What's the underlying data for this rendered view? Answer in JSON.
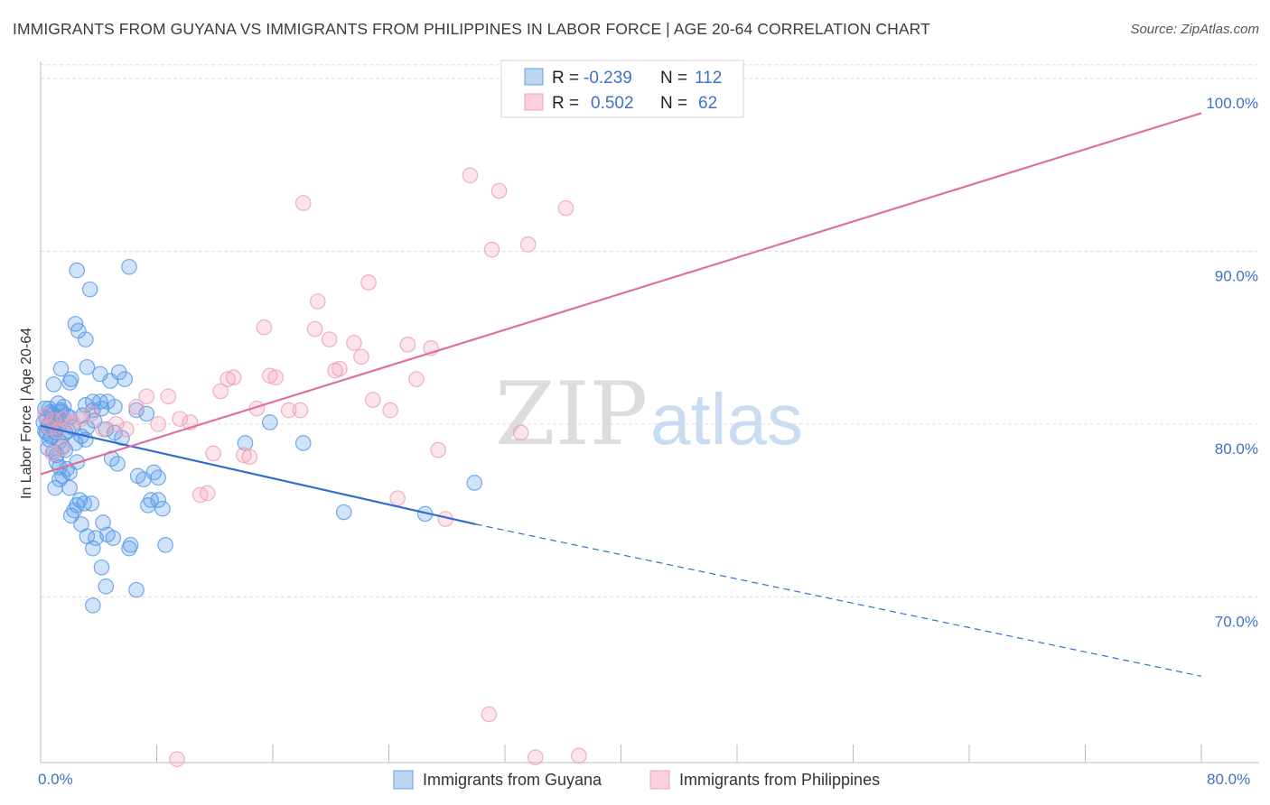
{
  "chart_data": {
    "type": "scatter",
    "title": "IMMIGRANTS FROM GUYANA VS IMMIGRANTS FROM PHILIPPINES IN LABOR FORCE | AGE 20-64 CORRELATION CHART",
    "source": "Source: ZipAtlas.com",
    "ylabel": "In Labor Force | Age 20-64",
    "xlim": [
      0,
      80
    ],
    "ylim": [
      60.4,
      101
    ],
    "x_tick_labels": [
      "0.0%",
      "80.0%"
    ],
    "y_ticks": [
      {
        "value": 70,
        "label": "70.0%"
      },
      {
        "value": 80,
        "label": "80.0%"
      },
      {
        "value": 90,
        "label": "90.0%"
      },
      {
        "value": 100,
        "label": "100.0%"
      }
    ],
    "watermark": {
      "zip": "ZIP",
      "atlas": "atlas"
    },
    "colors": {
      "guyana": "#5b9be8",
      "guyana_line": "#2f6fce",
      "philippines": "#f0a0b8",
      "philippines_line": "#e0709a",
      "tick": "#3d72c9"
    },
    "legend": [
      {
        "r_label": "R =",
        "r_value": "-0.239",
        "n_label": "N =",
        "n_value": "112"
      },
      {
        "r_label": "R =",
        "r_value": "0.502",
        "n_label": "N =",
        "n_value": "62"
      }
    ],
    "series": [
      {
        "name": "Immigrants from Guyana",
        "trend": {
          "x0": 0,
          "y0": 79.9,
          "x1": 30,
          "y1": 74.2,
          "x_dash_end": 80,
          "y_dash_end": 65.4
        },
        "points": [
          [
            0.2,
            80.1
          ],
          [
            0.3,
            79.6
          ],
          [
            0.4,
            80.3
          ],
          [
            0.5,
            79.8
          ],
          [
            0.6,
            80.0
          ],
          [
            0.7,
            79.3
          ],
          [
            0.8,
            80.5
          ],
          [
            0.9,
            79.9
          ],
          [
            1.0,
            80.2
          ],
          [
            1.1,
            79.7
          ],
          [
            0.3,
            80.9
          ],
          [
            0.5,
            78.6
          ],
          [
            0.6,
            79.1
          ],
          [
            0.8,
            80.6
          ],
          [
            1.0,
            79.5
          ],
          [
            1.2,
            80.4
          ],
          [
            1.3,
            79.0
          ],
          [
            1.4,
            80.8
          ],
          [
            1.5,
            78.7
          ],
          [
            1.6,
            80.3
          ],
          [
            0.9,
            82.3
          ],
          [
            1.2,
            81.2
          ],
          [
            1.4,
            80.7
          ],
          [
            1.6,
            81.0
          ],
          [
            1.8,
            80.5
          ],
          [
            2.0,
            80.4
          ],
          [
            2.2,
            79.8
          ],
          [
            1.1,
            78.2
          ],
          [
            1.3,
            77.5
          ],
          [
            1.5,
            77.0
          ],
          [
            1.0,
            76.3
          ],
          [
            1.3,
            76.8
          ],
          [
            1.8,
            77.4
          ],
          [
            2.0,
            77.2
          ],
          [
            2.5,
            77.8
          ],
          [
            2.0,
            76.3
          ],
          [
            2.3,
            75.0
          ],
          [
            2.1,
            74.7
          ],
          [
            2.5,
            75.3
          ],
          [
            3.0,
            75.4
          ],
          [
            2.7,
            75.6
          ],
          [
            3.5,
            75.4
          ],
          [
            2.8,
            74.2
          ],
          [
            3.2,
            73.5
          ],
          [
            3.8,
            73.4
          ],
          [
            3.6,
            72.8
          ],
          [
            4.3,
            74.3
          ],
          [
            4.6,
            73.6
          ],
          [
            5.0,
            73.4
          ],
          [
            6.1,
            72.8
          ],
          [
            6.2,
            73.0
          ],
          [
            4.2,
            71.7
          ],
          [
            4.5,
            70.6
          ],
          [
            3.6,
            69.5
          ],
          [
            6.6,
            70.4
          ],
          [
            1.4,
            83.2
          ],
          [
            2.1,
            82.6
          ],
          [
            2.0,
            82.4
          ],
          [
            3.2,
            83.3
          ],
          [
            4.1,
            82.9
          ],
          [
            4.8,
            82.5
          ],
          [
            5.4,
            83.0
          ],
          [
            5.8,
            82.6
          ],
          [
            3.1,
            81.1
          ],
          [
            3.6,
            81.3
          ],
          [
            4.1,
            81.3
          ],
          [
            4.6,
            81.3
          ],
          [
            5.1,
            81.0
          ],
          [
            2.9,
            80.5
          ],
          [
            3.6,
            80.8
          ],
          [
            4.2,
            80.9
          ],
          [
            3.7,
            80.2
          ],
          [
            3.2,
            79.8
          ],
          [
            4.5,
            79.7
          ],
          [
            5.1,
            79.5
          ],
          [
            5.6,
            79.2
          ],
          [
            6.6,
            80.8
          ],
          [
            7.3,
            80.6
          ],
          [
            3.1,
            79.1
          ],
          [
            4.9,
            78.0
          ],
          [
            5.3,
            77.7
          ],
          [
            6.7,
            77.0
          ],
          [
            7.1,
            76.8
          ],
          [
            7.8,
            77.2
          ],
          [
            8.1,
            76.9
          ],
          [
            7.4,
            75.3
          ],
          [
            7.6,
            75.6
          ],
          [
            8.1,
            75.6
          ],
          [
            8.4,
            75.1
          ],
          [
            8.6,
            73.0
          ],
          [
            2.4,
            85.8
          ],
          [
            2.6,
            85.4
          ],
          [
            3.1,
            84.9
          ],
          [
            3.4,
            87.8
          ],
          [
            2.5,
            88.9
          ],
          [
            6.1,
            89.1
          ],
          [
            14.1,
            78.9
          ],
          [
            15.8,
            80.1
          ],
          [
            18.1,
            78.9
          ],
          [
            20.9,
            74.9
          ],
          [
            26.5,
            74.8
          ],
          [
            29.9,
            76.6
          ],
          [
            0.4,
            79.5
          ],
          [
            0.7,
            80.7
          ],
          [
            0.9,
            78.4
          ],
          [
            1.7,
            79.5
          ],
          [
            2.4,
            78.9
          ],
          [
            0.6,
            80.9
          ],
          [
            1.9,
            79.6
          ],
          [
            2.8,
            79.3
          ],
          [
            1.1,
            77.8
          ],
          [
            1.7,
            78.5
          ]
        ]
      },
      {
        "name": "Immigrants from Philippines",
        "trend": {
          "x0": 0,
          "y0": 77.1,
          "x1": 80,
          "y1": 98.0
        },
        "points": [
          [
            0.3,
            80.5
          ],
          [
            0.6,
            79.8
          ],
          [
            0.9,
            80.2
          ],
          [
            1.2,
            79.6
          ],
          [
            1.5,
            78.6
          ],
          [
            0.8,
            78.3
          ],
          [
            2.2,
            80.1
          ],
          [
            2.8,
            80.3
          ],
          [
            3.5,
            80.6
          ],
          [
            4.3,
            79.7
          ],
          [
            5.2,
            80.0
          ],
          [
            5.9,
            79.7
          ],
          [
            6.6,
            81.0
          ],
          [
            7.3,
            81.6
          ],
          [
            8.1,
            80.0
          ],
          [
            8.8,
            81.6
          ],
          [
            9.6,
            80.3
          ],
          [
            10.3,
            80.1
          ],
          [
            11.0,
            75.9
          ],
          [
            11.5,
            76.0
          ],
          [
            11.9,
            78.3
          ],
          [
            12.4,
            81.9
          ],
          [
            12.9,
            82.6
          ],
          [
            13.3,
            82.7
          ],
          [
            14.0,
            78.2
          ],
          [
            14.4,
            78.1
          ],
          [
            14.9,
            80.9
          ],
          [
            15.4,
            85.6
          ],
          [
            15.8,
            82.8
          ],
          [
            16.2,
            82.7
          ],
          [
            17.1,
            80.8
          ],
          [
            17.9,
            80.8
          ],
          [
            18.1,
            92.8
          ],
          [
            18.9,
            85.5
          ],
          [
            19.1,
            87.1
          ],
          [
            19.9,
            84.9
          ],
          [
            20.3,
            83.1
          ],
          [
            20.6,
            83.2
          ],
          [
            21.6,
            84.7
          ],
          [
            22.1,
            83.9
          ],
          [
            22.6,
            88.2
          ],
          [
            22.9,
            81.4
          ],
          [
            24.1,
            80.8
          ],
          [
            24.6,
            75.7
          ],
          [
            25.3,
            84.6
          ],
          [
            25.9,
            82.6
          ],
          [
            26.9,
            84.4
          ],
          [
            27.4,
            78.5
          ],
          [
            27.9,
            74.5
          ],
          [
            29.6,
            94.4
          ],
          [
            31.1,
            90.1
          ],
          [
            31.6,
            93.5
          ],
          [
            33.1,
            79.5
          ],
          [
            33.6,
            90.4
          ],
          [
            34.1,
            60.7
          ],
          [
            36.2,
            92.5
          ],
          [
            37.1,
            60.8
          ],
          [
            40.2,
            100.0
          ],
          [
            42.2,
            100.0
          ],
          [
            30.9,
            63.2
          ],
          [
            9.4,
            60.6
          ],
          [
            1.6,
            80.3
          ]
        ]
      }
    ]
  }
}
